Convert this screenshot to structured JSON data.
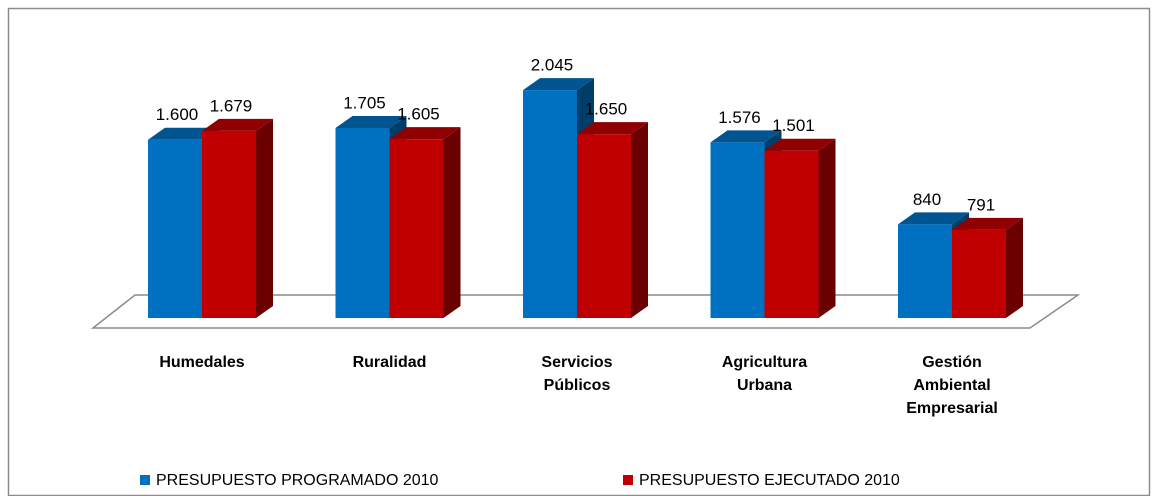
{
  "chart_data": {
    "type": "bar3d",
    "categories": [
      "Humedales",
      "Ruralidad",
      "Servicios Públicos",
      "Agricultura Urbana",
      "Gestión Ambiental Empresarial"
    ],
    "series": [
      {
        "name": "PRESUPUESTO PROGRAMADO 2010",
        "color": "#0070c0",
        "values": [
          1600,
          1705,
          2045,
          1576,
          840
        ],
        "value_labels": [
          "1.600",
          "1.705",
          "2.045",
          "1.576",
          "840"
        ]
      },
      {
        "name": "PRESUPUESTO EJECUTADO 2010",
        "color": "#c00000",
        "values": [
          1679,
          1605,
          1650,
          1501,
          791
        ],
        "value_labels": [
          "1.679",
          "1.605",
          "1.650",
          "1.501",
          "791"
        ]
      }
    ],
    "ylim": [
      0,
      2100
    ],
    "legend": "bottom"
  }
}
